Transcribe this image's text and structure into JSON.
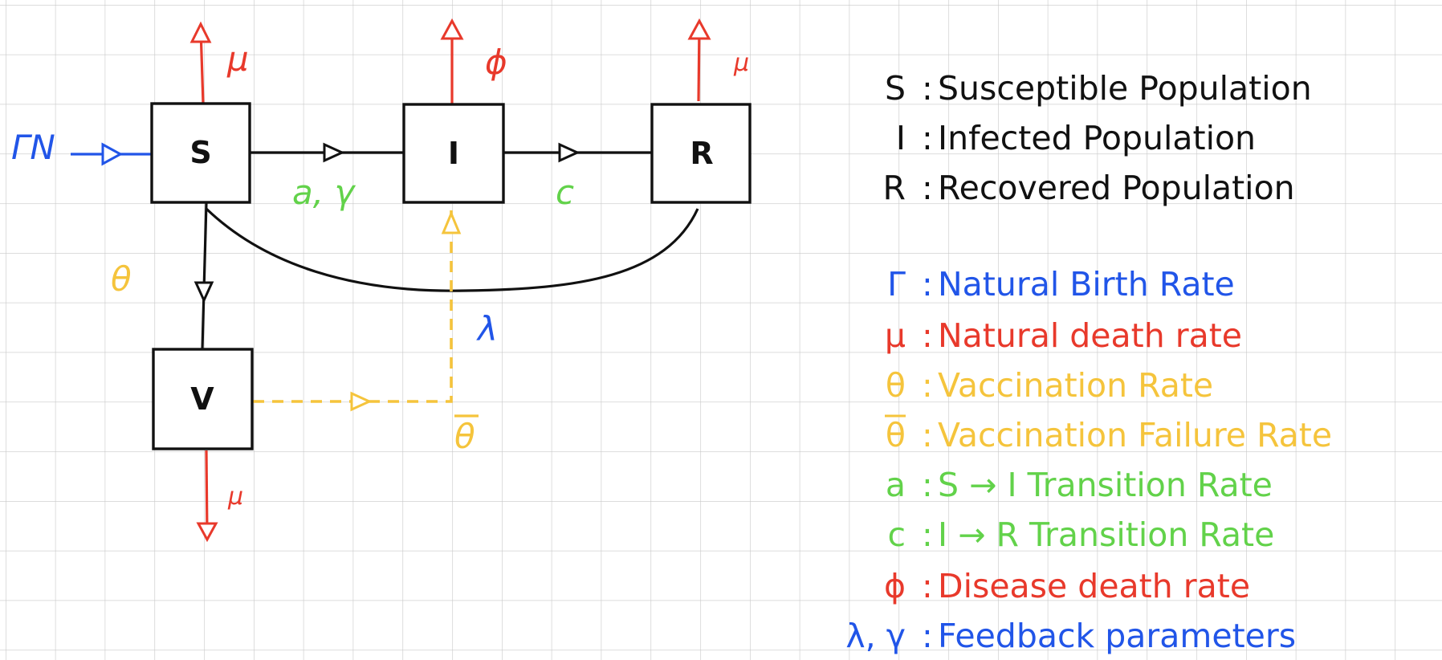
{
  "colors": {
    "ink": "#111111",
    "red": "#e8392b",
    "blue": "#2155e8",
    "yellow": "#f5c43c",
    "green": "#62d24a",
    "grid": "#c8c8c8"
  },
  "nodes": {
    "s": "S",
    "i": "I",
    "r": "R",
    "v": "V"
  },
  "labels": {
    "birth_input": "ΓN",
    "mu_s": "μ",
    "phi_i": "ϕ",
    "mu_r": "μ",
    "mu_v": "μ",
    "s_to_i": "a, γ",
    "i_to_r": "c",
    "theta": "θ",
    "lambda": "λ",
    "theta_bar": "θ"
  },
  "legend": [
    {
      "symbol": "S",
      "text": "Susceptible Population",
      "color": "ink"
    },
    {
      "symbol": "I",
      "text": "Infected Population",
      "color": "ink"
    },
    {
      "symbol": "R",
      "text": "Recovered Population",
      "color": "ink"
    },
    {
      "symbol": "Γ",
      "text": "Natural Birth Rate",
      "color": "blue"
    },
    {
      "symbol": "μ",
      "text": "Natural death rate",
      "color": "red"
    },
    {
      "symbol": "θ",
      "text": "Vaccination Rate",
      "color": "yellow"
    },
    {
      "symbol": "θ",
      "text": "Vaccination Failure Rate",
      "color": "yellow",
      "overbar": true
    },
    {
      "symbol": "a",
      "text": "S → I Transition Rate",
      "color": "green"
    },
    {
      "symbol": "c",
      "text": "I → R Transition Rate",
      "color": "green"
    },
    {
      "symbol": "ϕ",
      "text": "Disease death rate",
      "color": "red"
    },
    {
      "symbol": "λ, γ",
      "text": "Feedback parameters",
      "color": "blue"
    }
  ]
}
